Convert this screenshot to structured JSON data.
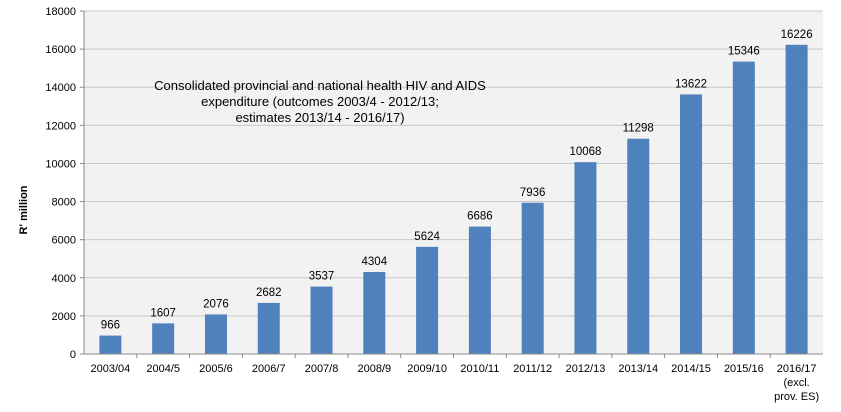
{
  "chart_data": {
    "type": "bar",
    "title_lines": [
      "Consolidated provincial and national health HIV  and AIDS",
      "expenditure (outcomes 2003/4 - 2012/13;",
      "estimates 2013/14 - 2016/17)"
    ],
    "ylabel": "R' million",
    "xlabel": "",
    "ylim": [
      0,
      18000
    ],
    "yticks": [
      0,
      2000,
      4000,
      6000,
      8000,
      10000,
      12000,
      14000,
      16000,
      18000
    ],
    "grid": true,
    "categories": [
      "2003/04",
      "2004/5",
      "2005/6",
      "2006/7",
      "2007/8",
      "2008/9",
      "2009/10",
      "2010/11",
      "2011/12",
      "2012/13",
      "2013/14",
      "2014/15",
      "2015/16",
      "2016/17"
    ],
    "category_notes": [
      "",
      "",
      "",
      "",
      "",
      "",
      "",
      "",
      "",
      "",
      "",
      "",
      "",
      "(excl."
    ],
    "category_notes2": [
      "",
      "",
      "",
      "",
      "",
      "",
      "",
      "",
      "",
      "",
      "",
      "",
      "",
      "prov. ES)"
    ],
    "values": [
      966,
      1607,
      2076,
      2682,
      3537,
      4304,
      5624,
      6686,
      7936,
      10068,
      11298,
      13622,
      15346,
      16226
    ],
    "bar_color": "#4F81BD",
    "plot_background": "#F2F2F2"
  }
}
